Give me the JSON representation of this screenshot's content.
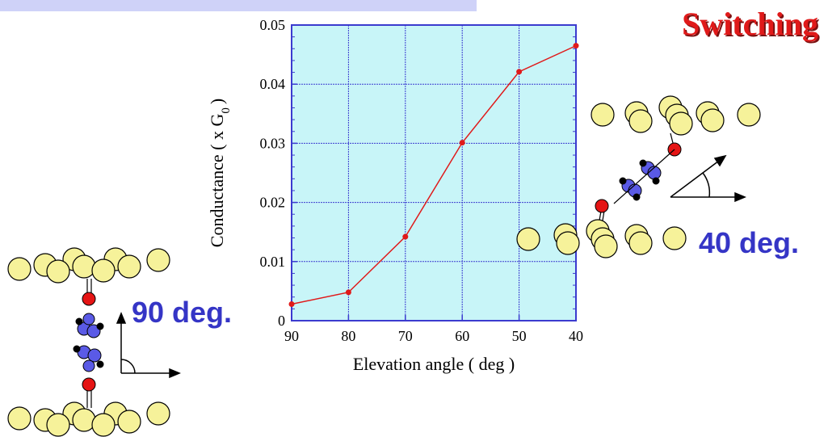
{
  "title": "Switching",
  "labels": {
    "angle_90": "90 deg.",
    "angle_40": "40 deg."
  },
  "colors": {
    "plot_bg": "#c8f5f8",
    "grid": "#3b3bcf",
    "series": "#e01a1a",
    "gold_atom": "#f6f29a",
    "oxygen_atom": "#e51414",
    "carbon_atom": "#5a5ae6",
    "label_blue": "#3535c6"
  },
  "chart_data": {
    "type": "line",
    "xlabel": "Elevation angle ( deg )",
    "ylabel": "Conductance ( x G",
    "ylabel_sub": "0",
    "ylabel_end": ")",
    "xlim": [
      90,
      40
    ],
    "ylim": [
      0,
      0.05
    ],
    "x_ticks": [
      "90",
      "80",
      "70",
      "60",
      "50",
      "40"
    ],
    "y_ticks": [
      "0",
      "0.01",
      "0.02",
      "0.03",
      "0.04",
      "0.05"
    ],
    "grid": true,
    "series": [
      {
        "x": [
          90,
          80,
          70,
          60,
          50,
          40
        ],
        "values": [
          0.0028,
          0.0048,
          0.0142,
          0.0301,
          0.0421,
          0.0465
        ]
      }
    ]
  }
}
